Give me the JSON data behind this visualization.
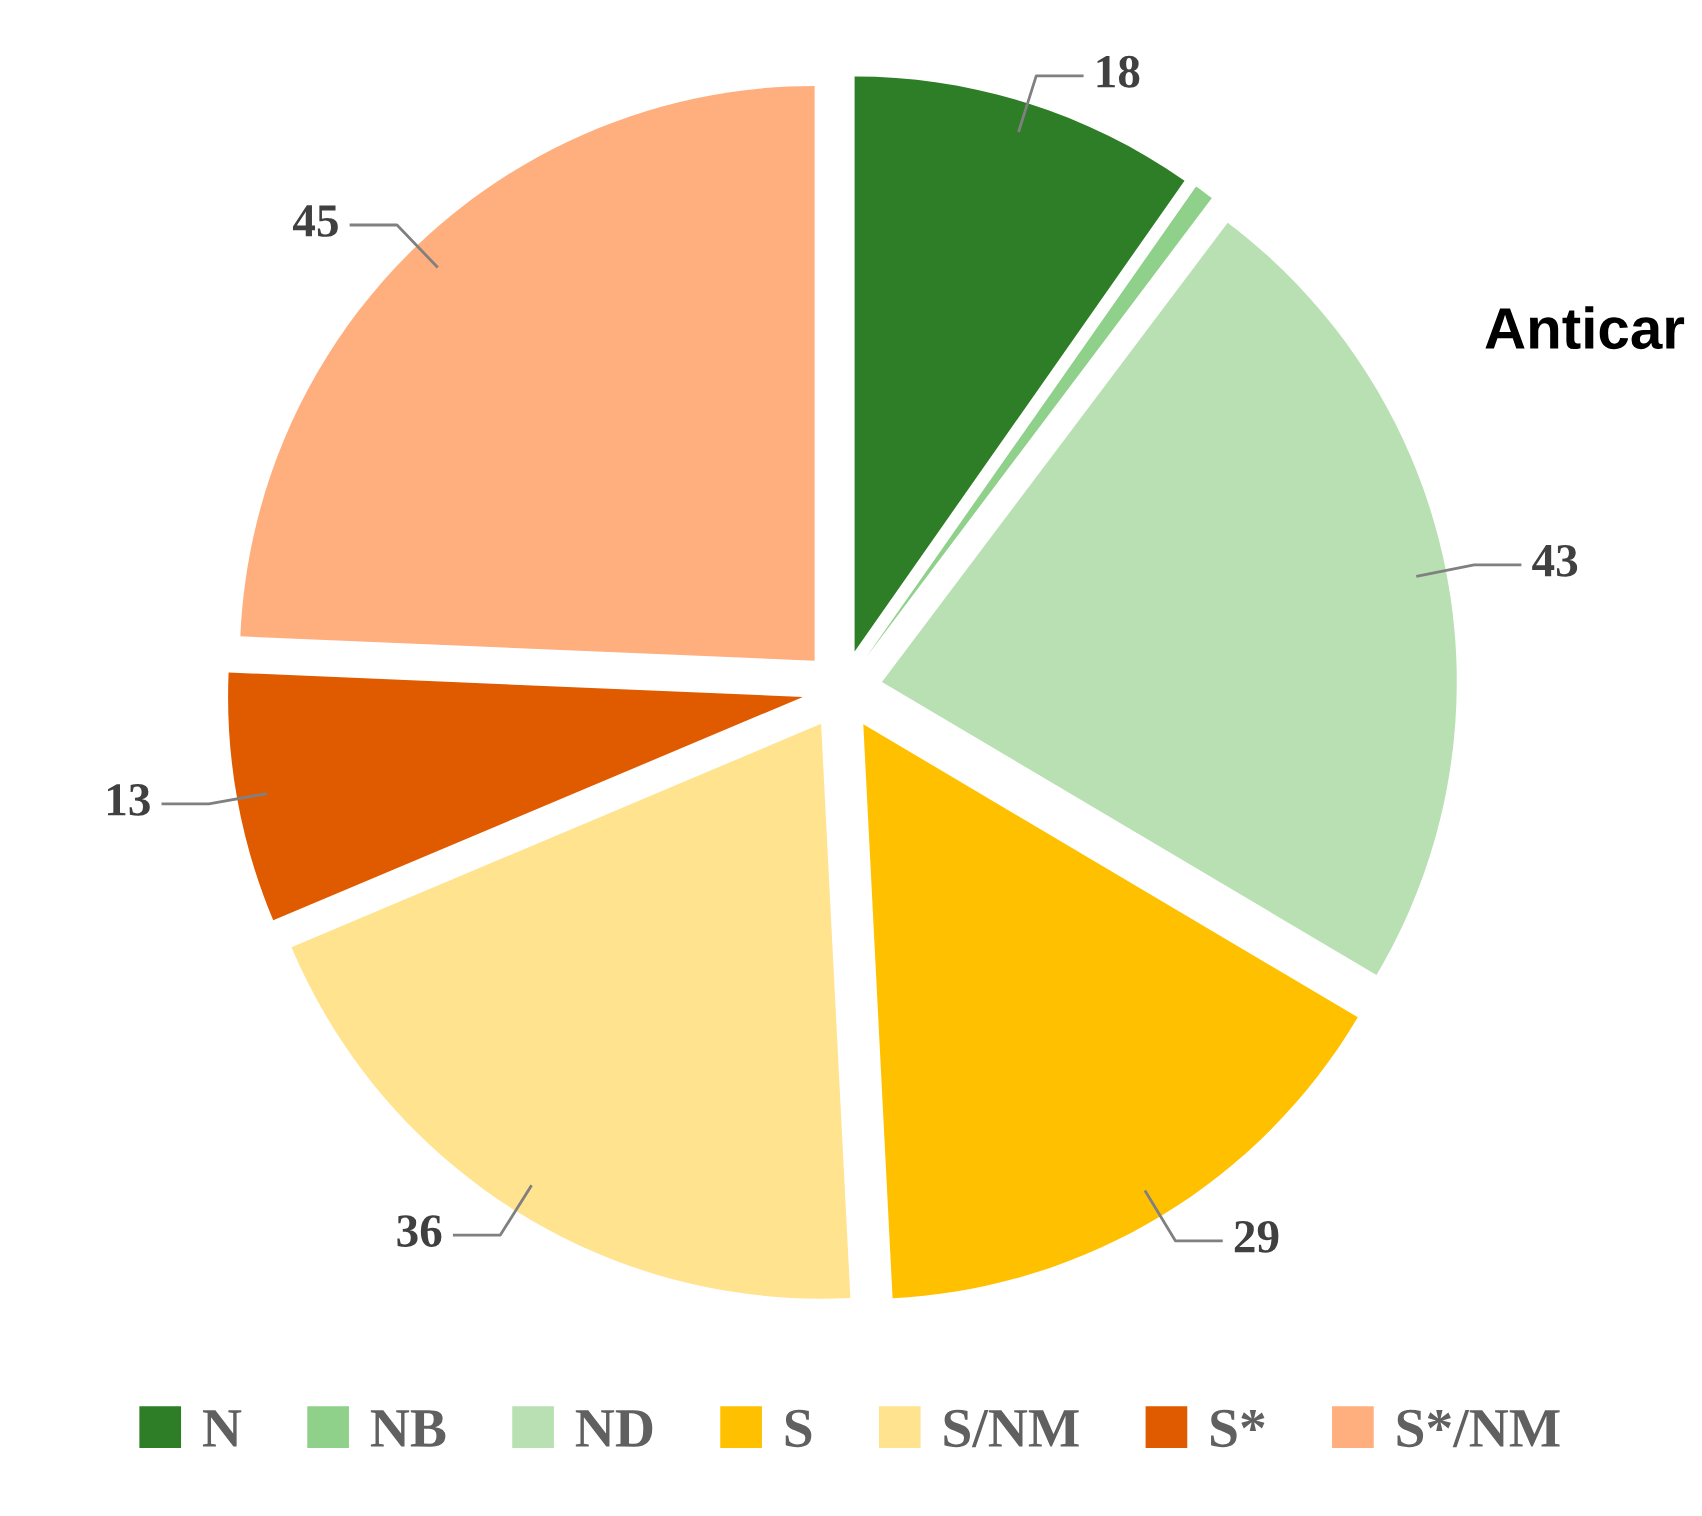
{
  "chart_data": {
    "type": "pie",
    "categories": [
      "N",
      "NB",
      "ND",
      "S",
      "S/NM",
      "S*",
      "S*/NM"
    ],
    "values": [
      18,
      1,
      43,
      29,
      36,
      13,
      45
    ],
    "colors": [
      "#2e7d27",
      "#8fd18a",
      "#b8e0b2",
      "#ffc000",
      "#ffe38f",
      "#e05a00",
      "#ffae7e"
    ],
    "value_labels": [
      "18",
      null,
      "43",
      "29",
      "36",
      "13",
      "45"
    ],
    "annotations": [
      "Anticar"
    ],
    "legend": "bottom"
  }
}
